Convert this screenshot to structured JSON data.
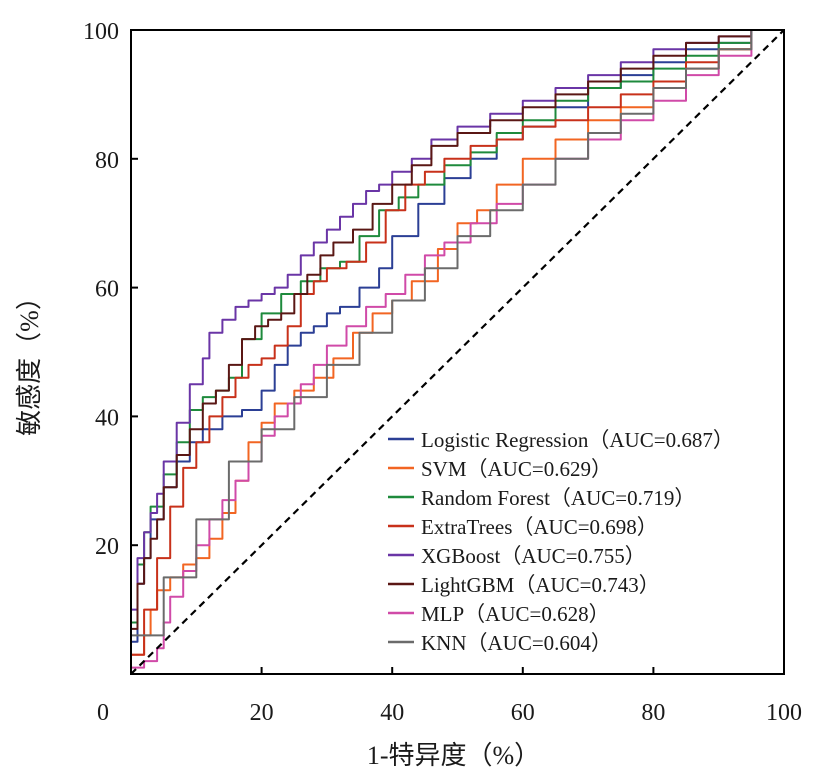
{
  "chart_data": {
    "type": "line",
    "title": "",
    "xlabel": "1-特异度（%）",
    "ylabel": "敏感度（%）",
    "xlim": [
      0,
      100
    ],
    "ylim": [
      0,
      100
    ],
    "xticks": [
      0,
      20,
      40,
      60,
      80,
      100
    ],
    "yticks": [
      20,
      40,
      60,
      80,
      100
    ],
    "xtick_labels": [
      "0",
      "20",
      "40",
      "60",
      "80",
      "100"
    ],
    "ytick_labels": [
      "20",
      "40",
      "60",
      "80",
      "100"
    ],
    "grid": false,
    "legend_position": "bottom-right",
    "reference_line": {
      "style": "dashed",
      "color": "#000000",
      "x": [
        0,
        100
      ],
      "y": [
        0,
        100
      ]
    },
    "series": [
      {
        "name": "Logistic Regression",
        "legend": "Logistic Regression（AUC=0.687）",
        "auc": 0.687,
        "color": "#2b3f95",
        "x": [
          0,
          1,
          2,
          3,
          5,
          7,
          9,
          11,
          14,
          17,
          20,
          22,
          24,
          26,
          28,
          30,
          32,
          35,
          38,
          40,
          44,
          48,
          52,
          56,
          60,
          65,
          70,
          75,
          80,
          85,
          90,
          95,
          100
        ],
        "y": [
          0,
          5,
          14,
          18,
          24,
          29,
          33,
          36,
          38,
          40,
          41,
          44,
          48,
          51,
          53,
          54,
          56,
          57,
          60,
          63,
          68,
          73,
          77,
          80,
          83,
          85,
          88,
          91,
          93,
          95,
          97,
          98,
          100
        ]
      },
      {
        "name": "SVM",
        "legend": "SVM（AUC=0.629）",
        "auc": 0.629,
        "color": "#f26522",
        "x": [
          0,
          2,
          3,
          4,
          6,
          8,
          10,
          12,
          14,
          16,
          18,
          20,
          22,
          25,
          28,
          31,
          34,
          37,
          40,
          43,
          47,
          50,
          53,
          56,
          60,
          65,
          70,
          75,
          80,
          85,
          90,
          95,
          100
        ],
        "y": [
          0,
          3,
          6,
          10,
          13,
          15,
          17,
          18,
          21,
          25,
          30,
          36,
          39,
          42,
          44,
          46,
          49,
          53,
          56,
          58,
          61,
          66,
          70,
          72,
          76,
          80,
          83,
          86,
          88,
          91,
          94,
          97,
          100
        ]
      },
      {
        "name": "Random Forest",
        "legend": "Random Forest（AUC=0.719）",
        "auc": 0.719,
        "color": "#1e8a3c",
        "x": [
          0,
          1,
          2,
          3,
          5,
          7,
          9,
          11,
          13,
          15,
          17,
          20,
          23,
          26,
          29,
          32,
          35,
          38,
          41,
          44,
          48,
          52,
          56,
          60,
          65,
          70,
          75,
          80,
          85,
          90,
          95,
          100
        ],
        "y": [
          0,
          8,
          17,
          22,
          26,
          31,
          36,
          41,
          43,
          44,
          46,
          52,
          56,
          59,
          61,
          63,
          64,
          68,
          72,
          74,
          76,
          79,
          81,
          84,
          86,
          89,
          91,
          92,
          94,
          96,
          98,
          100
        ]
      },
      {
        "name": "ExtraTrees",
        "legend": "ExtraTrees（AUC=0.698）",
        "auc": 0.698,
        "color": "#c8311a",
        "x": [
          0,
          2,
          4,
          6,
          8,
          10,
          12,
          14,
          16,
          18,
          20,
          22,
          24,
          26,
          28,
          30,
          33,
          36,
          39,
          42,
          45,
          48,
          52,
          56,
          60,
          65,
          70,
          75,
          80,
          85,
          90,
          95,
          100
        ],
        "y": [
          0,
          3,
          10,
          18,
          26,
          32,
          36,
          40,
          43,
          46,
          48,
          49,
          51,
          54,
          59,
          61,
          63,
          64,
          67,
          72,
          76,
          78,
          80,
          82,
          83,
          85,
          86,
          88,
          90,
          92,
          95,
          97,
          100
        ]
      },
      {
        "name": "XGBoost",
        "legend": "XGBoost（AUC=0.755）",
        "auc": 0.755,
        "color": "#6a35a6",
        "x": [
          0,
          1,
          2,
          3,
          4,
          5,
          7,
          9,
          11,
          12,
          14,
          16,
          18,
          20,
          22,
          24,
          26,
          28,
          30,
          32,
          34,
          36,
          38,
          40,
          43,
          46,
          50,
          55,
          60,
          65,
          70,
          75,
          80,
          85,
          90,
          95,
          100
        ],
        "y": [
          0,
          10,
          18,
          22,
          25,
          28,
          33,
          39,
          45,
          49,
          53,
          55,
          57,
          58,
          59,
          60,
          62,
          65,
          67,
          69,
          71,
          73,
          75,
          76,
          78,
          80,
          83,
          85,
          87,
          89,
          91,
          93,
          95,
          97,
          98,
          99,
          100
        ]
      },
      {
        "name": "LightGBM",
        "legend": "LightGBM（AUC=0.743）",
        "auc": 0.743,
        "color": "#5a1714",
        "x": [
          0,
          1,
          2,
          3,
          4,
          5,
          7,
          9,
          11,
          13,
          15,
          17,
          19,
          21,
          23,
          25,
          27,
          29,
          31,
          34,
          37,
          40,
          43,
          46,
          50,
          55,
          60,
          65,
          70,
          75,
          80,
          85,
          90,
          95,
          100
        ],
        "y": [
          0,
          7,
          14,
          18,
          21,
          24,
          29,
          34,
          38,
          42,
          44,
          48,
          52,
          54,
          55,
          56,
          59,
          62,
          65,
          67,
          69,
          73,
          76,
          79,
          82,
          84,
          86,
          88,
          90,
          92,
          94,
          96,
          98,
          99,
          100
        ]
      },
      {
        "name": "MLP",
        "legend": "MLP（AUC=0.628）",
        "auc": 0.628,
        "color": "#d04aa8",
        "x": [
          0,
          2,
          4,
          5,
          6,
          8,
          10,
          12,
          14,
          16,
          18,
          20,
          22,
          24,
          26,
          28,
          30,
          33,
          36,
          39,
          42,
          45,
          48,
          52,
          56,
          60,
          65,
          70,
          75,
          80,
          85,
          90,
          95,
          100
        ],
        "y": [
          0,
          1,
          2,
          4,
          8,
          12,
          16,
          20,
          24,
          27,
          30,
          33,
          37,
          40,
          42,
          45,
          48,
          51,
          54,
          57,
          59,
          62,
          65,
          67,
          70,
          73,
          76,
          80,
          83,
          86,
          89,
          93,
          96,
          100
        ]
      },
      {
        "name": "KNN",
        "legend": "KNN（AUC=0.604）",
        "auc": 0.604,
        "color": "#6b6b6b",
        "x": [
          0,
          5,
          10,
          15,
          20,
          25,
          30,
          35,
          40,
          45,
          50,
          55,
          60,
          65,
          70,
          75,
          80,
          85,
          90,
          95,
          100
        ],
        "y": [
          0,
          6,
          15,
          24,
          33,
          38,
          43,
          48,
          53,
          58,
          63,
          68,
          72,
          76,
          80,
          84,
          87,
          91,
          94,
          97,
          100
        ]
      }
    ]
  }
}
